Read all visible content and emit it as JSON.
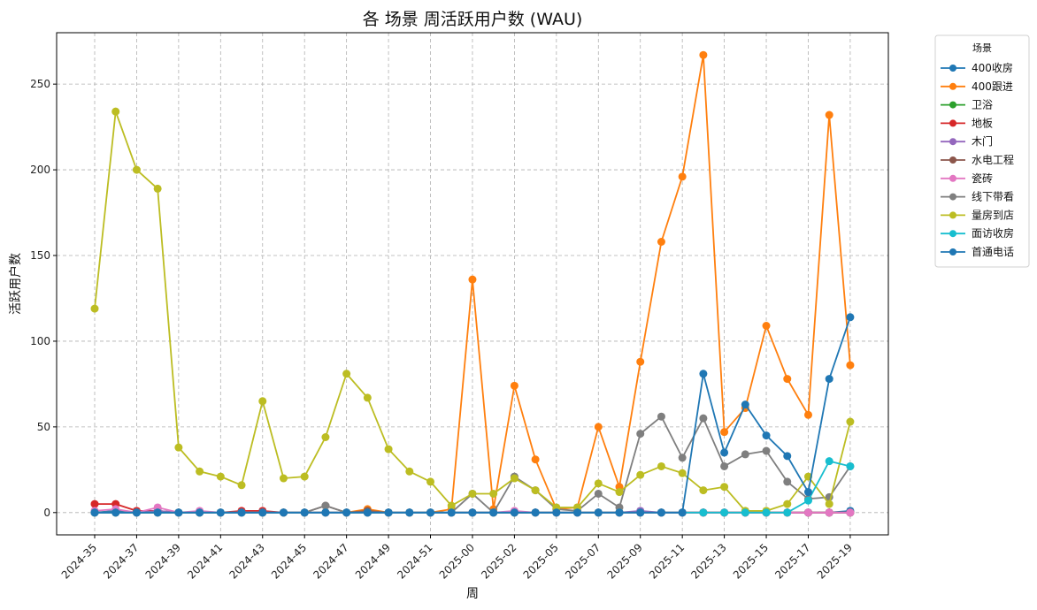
{
  "chart_data": {
    "type": "line",
    "title": "各 场景 周活跃用户数 (WAU)",
    "xlabel": "周",
    "ylabel": "活跃用户数",
    "ylim": [
      -13,
      280
    ],
    "yticks": [
      0,
      50,
      100,
      150,
      200,
      250
    ],
    "grid": true,
    "legend": {
      "title": "场景",
      "placement": "outside-right"
    },
    "categories": [
      "2024-35",
      "2024-36",
      "2024-37",
      "2024-38",
      "2024-39",
      "2024-40",
      "2024-41",
      "2024-42",
      "2024-43",
      "2024-44",
      "2024-45",
      "2024-46",
      "2024-47",
      "2024-48",
      "2024-49",
      "2024-50",
      "2024-51",
      "2024-52",
      "2025-00",
      "2025-01",
      "2025-02",
      "2025-03",
      "2025-05",
      "2025-06",
      "2025-07",
      "2025-08",
      "2025-09",
      "2025-10",
      "2025-11",
      "2025-12",
      "2025-13",
      "2025-14",
      "2025-15",
      "2025-16",
      "2025-17",
      "2025-18",
      "2025-19"
    ],
    "xticks": [
      "2024-35",
      "2024-37",
      "2024-39",
      "2024-41",
      "2024-43",
      "2024-45",
      "2024-47",
      "2024-49",
      "2024-51",
      "2025-00",
      "2025-02",
      "2025-05",
      "2025-07",
      "2025-09",
      "2025-11",
      "2025-13",
      "2025-15",
      "2025-17",
      "2025-19"
    ],
    "series": [
      {
        "name": "400收房",
        "color": "#1f77b4",
        "values": [
          0,
          1,
          0,
          1,
          0,
          0,
          0,
          0,
          0,
          0,
          0,
          0,
          0,
          0,
          0,
          0,
          0,
          0,
          0,
          0,
          0,
          0,
          0,
          0,
          0,
          0,
          0,
          0,
          0,
          0,
          0,
          0,
          0,
          0,
          0,
          0,
          1
        ]
      },
      {
        "name": "400跟进",
        "color": "#ff7f0e",
        "values": [
          0,
          0,
          0,
          0,
          0,
          0,
          0,
          0,
          0,
          0,
          0,
          0,
          0,
          2,
          0,
          0,
          0,
          2,
          136,
          2,
          74,
          31,
          2,
          3,
          50,
          15,
          88,
          158,
          196,
          267,
          47,
          61,
          109,
          78,
          57,
          232,
          86
        ]
      },
      {
        "name": "卫浴",
        "color": "#2ca02c",
        "values": [
          0,
          0,
          0,
          0,
          0,
          0,
          0,
          0,
          0,
          0,
          0,
          0,
          0,
          0,
          0,
          0,
          0,
          0,
          0,
          0,
          0,
          0,
          0,
          0,
          0,
          0,
          0,
          0,
          0,
          0,
          0,
          0,
          0,
          0,
          0,
          0,
          0
        ]
      },
      {
        "name": "地板",
        "color": "#d62728",
        "values": [
          5,
          5,
          1,
          1,
          0,
          0,
          0,
          1,
          1,
          0,
          0,
          0,
          0,
          0,
          0,
          0,
          0,
          0,
          0,
          0,
          0,
          0,
          0,
          0,
          0,
          0,
          0,
          0,
          0,
          0,
          0,
          0,
          0,
          0,
          0,
          0,
          0
        ]
      },
      {
        "name": "木门",
        "color": "#9467bd",
        "values": [
          0,
          0,
          0,
          1,
          0,
          0,
          0,
          0,
          0,
          0,
          0,
          0,
          0,
          0,
          0,
          0,
          0,
          0,
          0,
          0,
          0,
          0,
          0,
          0,
          0,
          0,
          1,
          0,
          0,
          0,
          0,
          0,
          0,
          0,
          0,
          0,
          0
        ]
      },
      {
        "name": "水电工程",
        "color": "#8c564b",
        "values": [
          0,
          0,
          0,
          0,
          0,
          0,
          0,
          0,
          0,
          0,
          0,
          4,
          0,
          1,
          0,
          0,
          0,
          0,
          0,
          0,
          0,
          0,
          0,
          0,
          0,
          0,
          0,
          0,
          0,
          0,
          0,
          0,
          0,
          0,
          0,
          0,
          0
        ]
      },
      {
        "name": "瓷砖",
        "color": "#e377c2",
        "values": [
          1,
          2,
          0,
          3,
          0,
          1,
          0,
          0,
          0,
          0,
          0,
          0,
          0,
          0,
          0,
          0,
          0,
          0,
          0,
          0,
          1,
          0,
          0,
          0,
          0,
          0,
          0,
          0,
          0,
          0,
          0,
          0,
          0,
          0,
          0,
          0,
          0
        ]
      },
      {
        "name": "线下带看",
        "color": "#7f7f7f",
        "values": [
          0,
          0,
          0,
          0,
          0,
          0,
          0,
          0,
          0,
          0,
          0,
          4,
          0,
          0,
          0,
          0,
          0,
          0,
          11,
          0,
          21,
          13,
          2,
          1,
          11,
          3,
          46,
          56,
          32,
          55,
          27,
          34,
          36,
          18,
          8,
          9,
          27
        ]
      },
      {
        "name": "量房到店",
        "color": "#bcbd22",
        "values": [
          119,
          234,
          200,
          189,
          38,
          24,
          21,
          16,
          65,
          20,
          21,
          44,
          81,
          67,
          37,
          24,
          18,
          4,
          11,
          11,
          20,
          13,
          3,
          3,
          17,
          12,
          22,
          27,
          23,
          13,
          15,
          1,
          1,
          5,
          21,
          5,
          53
        ]
      },
      {
        "name": "面访收房",
        "color": "#17becf",
        "values": [
          0,
          0,
          0,
          0,
          0,
          0,
          0,
          0,
          0,
          0,
          0,
          0,
          0,
          0,
          0,
          0,
          0,
          0,
          0,
          0,
          0,
          0,
          0,
          0,
          0,
          0,
          0,
          0,
          0,
          0,
          0,
          0,
          0,
          0,
          7,
          30,
          27
        ]
      },
      {
        "name": "首通电话",
        "color": "#1f77b4",
        "values": [
          0,
          0,
          0,
          0,
          0,
          0,
          0,
          0,
          0,
          0,
          0,
          0,
          0,
          0,
          0,
          0,
          0,
          0,
          0,
          0,
          0,
          0,
          0,
          0,
          0,
          0,
          0,
          0,
          0,
          81,
          35,
          63,
          45,
          33,
          12,
          78,
          114
        ]
      }
    ]
  }
}
